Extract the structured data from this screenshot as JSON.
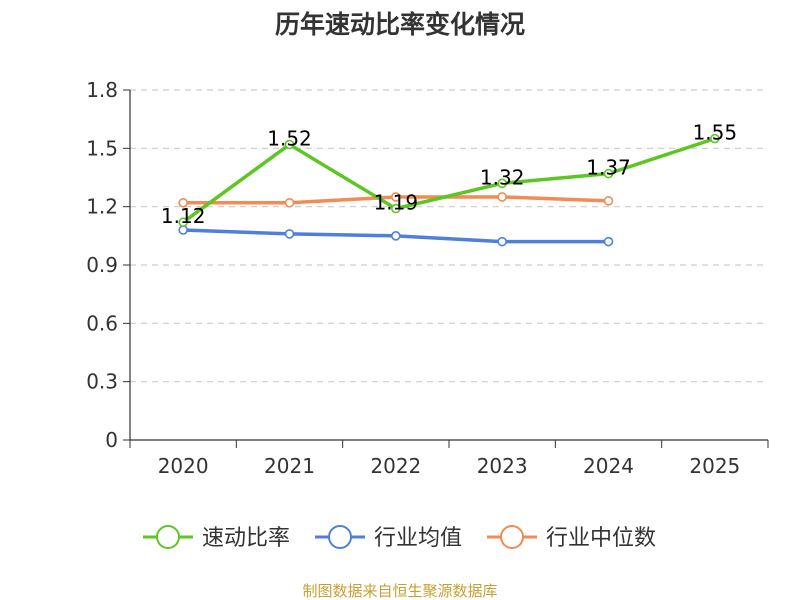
{
  "title": "历年速动比率变化情况",
  "footer": "制图数据来自恒生聚源数据库",
  "chart_data": {
    "type": "line",
    "title": "历年速动比率变化情况",
    "categories": [
      "2020",
      "2021",
      "2022",
      "2023",
      "2024",
      "2025"
    ],
    "ylim": [
      0,
      1.8
    ],
    "yticks": [
      "0",
      "0.3",
      "0.6",
      "0.9",
      "1.2",
      "1.5",
      "1.8"
    ],
    "grid": true,
    "legend_position": "bottom",
    "series": [
      {
        "name": "速动比率",
        "color": "#5cc623",
        "values": [
          1.12,
          1.52,
          1.19,
          1.32,
          1.37,
          1.55
        ],
        "labels": [
          "1.12",
          "1.52",
          "1.19",
          "1.32",
          "1.37",
          "1.55"
        ]
      },
      {
        "name": "行业均值",
        "color": "#4f7fdc",
        "values": [
          1.08,
          1.06,
          1.05,
          1.02,
          1.02,
          null
        ]
      },
      {
        "name": "行业中位数",
        "color": "#f28b54",
        "values": [
          1.22,
          1.22,
          1.25,
          1.25,
          1.23,
          null
        ]
      }
    ]
  }
}
